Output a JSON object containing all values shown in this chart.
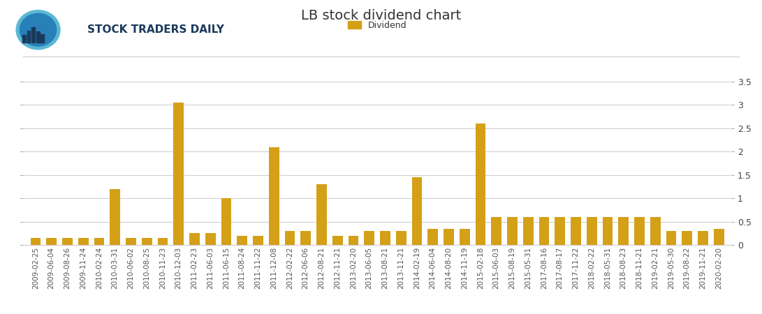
{
  "title": "LB stock dividend chart",
  "legend_label": "Dividend",
  "bar_color": "#D4A017",
  "background_color": "#ffffff",
  "grid_color": "#cccccc",
  "ylim": [
    0,
    3.5
  ],
  "yticks": [
    0,
    0.5,
    1,
    1.5,
    2,
    2.5,
    3,
    3.5
  ],
  "dates": [
    "2009-02-25",
    "2009-06-04",
    "2009-08-26",
    "2009-11-24",
    "2010-02-24",
    "2010-03-31",
    "2010-06-02",
    "2010-08-25",
    "2010-11-23",
    "2010-12-03",
    "2011-02-23",
    "2011-06-03",
    "2011-06-15",
    "2011-08-24",
    "2011-11-22",
    "2011-12-08",
    "2012-02-22",
    "2012-06-06",
    "2012-08-21",
    "2012-11-21",
    "2013-02-20",
    "2013-06-05",
    "2013-08-21",
    "2013-11-21",
    "2014-02-19",
    "2014-06-04",
    "2014-08-20",
    "2014-11-19",
    "2015-02-18",
    "2015-06-03",
    "2015-08-19",
    "2015-05-31",
    "2017-08-16",
    "2017-08-17",
    "2017-11-22",
    "2018-02-22",
    "2018-05-31",
    "2018-08-23",
    "2018-11-21",
    "2019-02-21",
    "2019-05-30",
    "2019-08-22",
    "2019-11-21",
    "2020-02-20"
  ],
  "values": [
    0.15,
    0.15,
    0.15,
    0.15,
    0.15,
    1.2,
    0.15,
    0.15,
    0.15,
    3.05,
    0.25,
    0.25,
    1.0,
    0.2,
    0.2,
    2.1,
    0.3,
    0.3,
    1.3,
    0.2,
    0.2,
    0.3,
    0.3,
    0.3,
    1.45,
    0.35,
    0.35,
    0.35,
    2.6,
    0.6,
    0.6,
    0.6,
    0.6,
    0.6,
    0.6,
    0.6,
    0.6,
    0.6,
    0.6,
    0.6,
    0.3,
    0.3,
    0.3,
    0.35
  ],
  "header_text": "STOCK TRADERS DAILY",
  "header_color": "#1a3a5c",
  "title_fontsize": 14,
  "tick_fontsize": 7.5,
  "legend_fontsize": 9
}
